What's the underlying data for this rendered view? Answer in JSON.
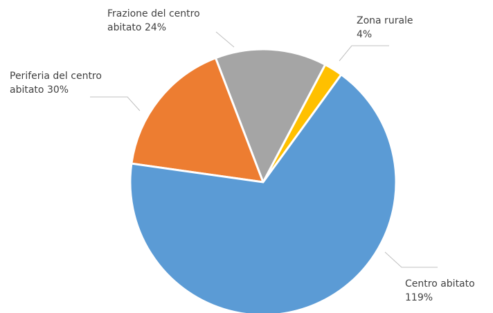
{
  "chart_data": {
    "type": "pie",
    "categories": [
      "Centro abitato",
      "Periferia del centro abitato",
      "Frazione del centro abitato",
      "Zona rurale"
    ],
    "values": [
      119,
      30,
      24,
      4
    ],
    "value_labels": [
      "119%",
      "30%",
      "24%",
      "4%"
    ],
    "colors": [
      "#5b9bd5",
      "#ed7d31",
      "#a5a5a5",
      "#ffc000"
    ]
  }
}
